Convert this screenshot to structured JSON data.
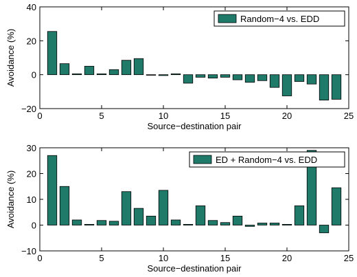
{
  "colors": {
    "bar_fill": "#1f7a6a",
    "bar_stroke": "#000000",
    "axis": "#000000"
  },
  "chart_data": [
    {
      "type": "bar",
      "xlabel": "Source−destination pair",
      "ylabel": "Avoidance (%)",
      "xlim": [
        0,
        25
      ],
      "ylim": [
        -20,
        40
      ],
      "xticks": [
        0,
        5,
        10,
        15,
        20,
        25
      ],
      "yticks": [
        -20,
        0,
        20,
        40
      ],
      "ytick_labels": [
        "−20",
        "0",
        "20",
        "40"
      ],
      "legend_position": "top-right",
      "series": [
        {
          "name": "Random−4 vs. EDD",
          "x": [
            1,
            2,
            3,
            4,
            5,
            6,
            7,
            8,
            9,
            10,
            11,
            12,
            13,
            14,
            15,
            16,
            17,
            18,
            19,
            20,
            21,
            22,
            23,
            24
          ],
          "values": [
            25.5,
            6.5,
            0.5,
            5,
            0.5,
            3,
            8.5,
            9.5,
            -0.3,
            -0.5,
            0.5,
            -5,
            -1.5,
            -2,
            -1.5,
            -3,
            -4.5,
            -3.5,
            -7.5,
            -12.5,
            -4,
            -5.5,
            -15,
            -14.5
          ]
        }
      ]
    },
    {
      "type": "bar",
      "xlabel": "Source−destination pair",
      "ylabel": "Avoidance (%)",
      "xlim": [
        0,
        25
      ],
      "ylim": [
        -10,
        30
      ],
      "xticks": [
        0,
        5,
        10,
        15,
        20,
        25
      ],
      "yticks": [
        -10,
        0,
        10,
        20,
        30
      ],
      "ytick_labels": [
        "−10",
        "0",
        "10",
        "20",
        "30"
      ],
      "legend_position": "top-right",
      "series": [
        {
          "name": "ED + Random−4 vs. EDD",
          "x": [
            1,
            2,
            3,
            4,
            5,
            6,
            7,
            8,
            9,
            10,
            11,
            12,
            13,
            14,
            15,
            16,
            17,
            18,
            19,
            20,
            21,
            22,
            23,
            24
          ],
          "values": [
            27,
            15,
            2,
            0.3,
            1.8,
            1.5,
            13,
            6.5,
            3.5,
            13.5,
            2,
            0.3,
            7.5,
            1.8,
            1,
            3.5,
            -0.5,
            0.8,
            0.8,
            0.3,
            7.5,
            29,
            -3,
            14.5
          ]
        }
      ]
    }
  ]
}
